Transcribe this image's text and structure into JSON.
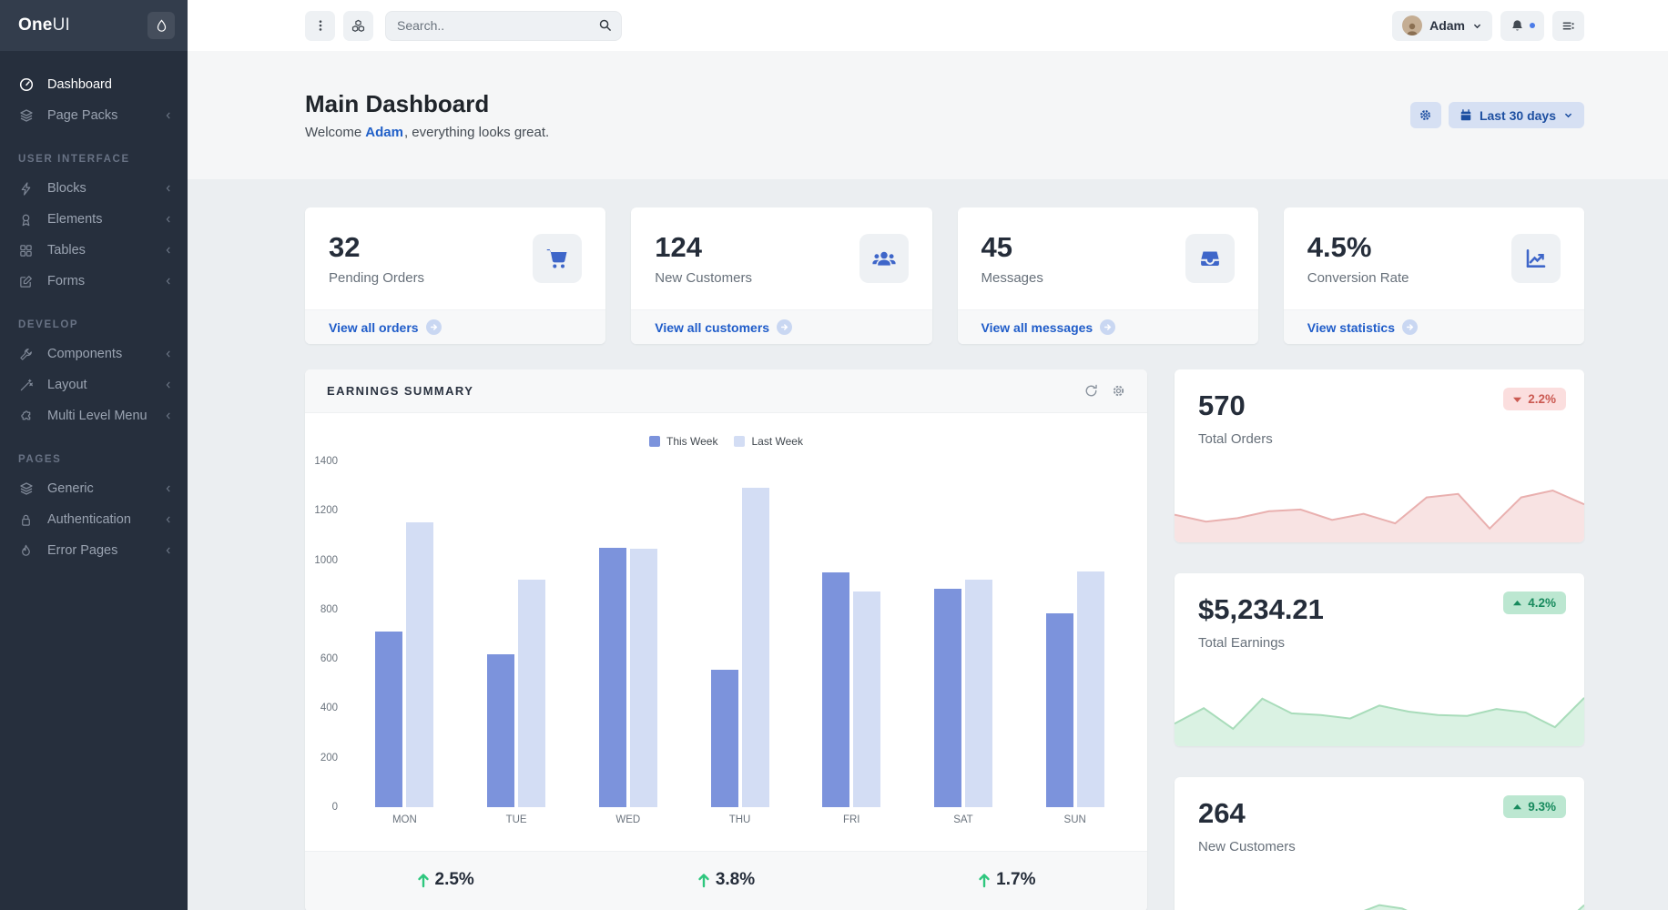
{
  "sidebar": {
    "brand_bold": "One",
    "brand_light": "UI",
    "sections": [
      {
        "items": [
          {
            "label": "Dashboard"
          },
          {
            "label": "Page Packs"
          }
        ]
      },
      {
        "heading": "USER INTERFACE",
        "items": [
          {
            "label": "Blocks"
          },
          {
            "label": "Elements"
          },
          {
            "label": "Tables"
          },
          {
            "label": "Forms"
          }
        ]
      },
      {
        "heading": "DEVELOP",
        "items": [
          {
            "label": "Components"
          },
          {
            "label": "Layout"
          },
          {
            "label": "Multi Level Menu"
          }
        ]
      },
      {
        "heading": "PAGES",
        "items": [
          {
            "label": "Generic"
          },
          {
            "label": "Authentication"
          },
          {
            "label": "Error Pages"
          }
        ]
      }
    ]
  },
  "header": {
    "search_placeholder": "Search..",
    "user_name": "Adam"
  },
  "hero": {
    "title": "Main Dashboard",
    "welcome_prefix": "Welcome",
    "welcome_name": "Adam",
    "welcome_suffix": ", everything looks great.",
    "range_label": "Last 30 days"
  },
  "stat_cards": [
    {
      "value": "32",
      "label": "Pending Orders",
      "icon": "cart-icon",
      "link": "View all orders"
    },
    {
      "value": "124",
      "label": "New Customers",
      "icon": "users-icon",
      "link": "View all customers"
    },
    {
      "value": "45",
      "label": "Messages",
      "icon": "inbox-icon",
      "link": "View all messages"
    },
    {
      "value": "4.5%",
      "label": "Conversion Rate",
      "icon": "chart-line-icon",
      "link": "View statistics"
    }
  ],
  "earnings": {
    "title": "EARNINGS SUMMARY",
    "footer_stats": [
      "2.5%",
      "3.8%",
      "1.7%"
    ]
  },
  "chart_data": {
    "type": "bar",
    "title": "Earnings Summary",
    "categories": [
      "MON",
      "TUE",
      "WED",
      "THU",
      "FRI",
      "SAT",
      "SUN"
    ],
    "series": [
      {
        "name": "This Week",
        "color": "#7c93dc",
        "values": [
          710,
          620,
          1050,
          555,
          950,
          885,
          785
        ]
      },
      {
        "name": "Last Week",
        "color": "#d3ddf4",
        "values": [
          1155,
          920,
          1045,
          1295,
          875,
          920,
          955
        ]
      }
    ],
    "xlabel": "",
    "ylabel": "",
    "ylim": [
      0,
      1400
    ],
    "yticks": [
      0,
      200,
      400,
      600,
      800,
      1000,
      1200,
      1400
    ],
    "grid": false,
    "legend_position": "top-center"
  },
  "side_cards": [
    {
      "value": "570",
      "label": "Total Orders",
      "badge": "2.2%",
      "trend": "down",
      "badge_bg": "#fbdede",
      "badge_text": "#cb5a52",
      "spark_stroke": "#e9b0af",
      "spark_fill": "#f8e3e3",
      "spark": [
        32,
        24,
        28,
        36,
        38,
        26,
        33,
        22,
        52,
        56,
        16,
        52,
        60,
        44
      ]
    },
    {
      "value": "$5,234.21",
      "label": "Total Earnings",
      "badge": "4.2%",
      "trend": "up",
      "badge_bg": "#bce7d1",
      "badge_text": "#178a5d",
      "spark_stroke": "#a8dcba",
      "spark_fill": "#daf2e3",
      "spark": [
        26,
        44,
        20,
        55,
        38,
        36,
        32,
        47,
        40,
        36,
        35,
        43,
        39,
        22,
        56
      ]
    },
    {
      "value": "264",
      "label": "New Customers",
      "badge": "9.3%",
      "trend": "up",
      "badge_bg": "#bce7d1",
      "badge_text": "#178a5d",
      "spark_stroke": "#a8dcba",
      "spark_fill": "#daf2e3",
      "spark": [
        15,
        25,
        45,
        28,
        18,
        30,
        24,
        20,
        42,
        52,
        48,
        36,
        33,
        34,
        36,
        33,
        40,
        28,
        52
      ]
    }
  ],
  "colors": {
    "primary_icon_blue": "#3e66c9",
    "link_blue": "#1f5cc9",
    "button_blue_bg": "#d6e0f3",
    "button_blue_text": "#1d4fa1",
    "footer_arrow_green": "#2ec77e",
    "sidebar_bg": "#262f3d",
    "sidebar_head_bg": "#333d4c"
  }
}
